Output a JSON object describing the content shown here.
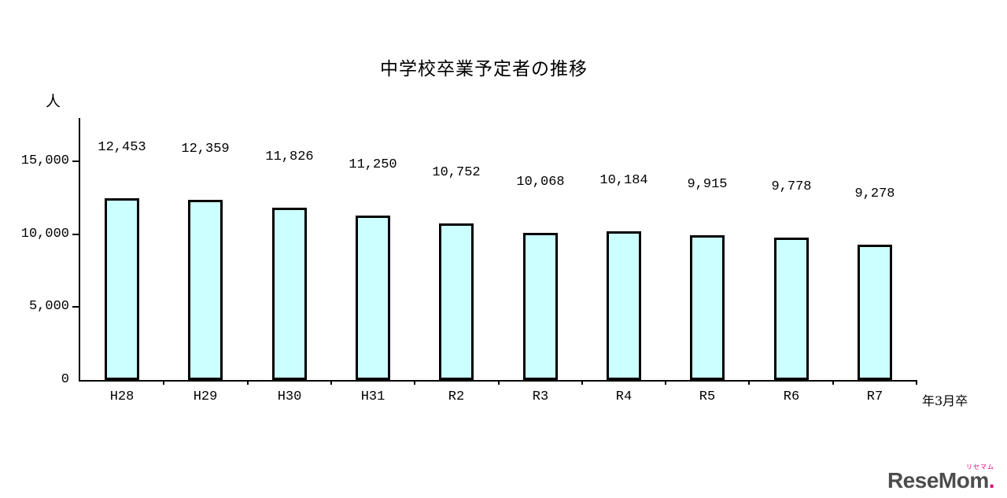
{
  "chart_data": {
    "type": "bar",
    "title": "中学校卒業予定者の推移",
    "y_unit": "人",
    "x_unit": "年3月卒",
    "categories": [
      "H28",
      "H29",
      "H30",
      "H31",
      "R2",
      "R3",
      "R4",
      "R5",
      "R6",
      "R7"
    ],
    "values": [
      12453,
      12359,
      11826,
      11250,
      10752,
      10068,
      10184,
      9915,
      9778,
      9278
    ],
    "value_labels": [
      "12,453",
      "12,359",
      "11,826",
      "11,250",
      "10,752",
      "10,068",
      "10,184",
      "9,915",
      "9,778",
      "9,278"
    ],
    "y_ticks": [
      {
        "value": 0,
        "label": "0"
      },
      {
        "value": 5000,
        "label": "5,000"
      },
      {
        "value": 10000,
        "label": "10,000"
      },
      {
        "value": 15000,
        "label": "15,000"
      }
    ],
    "ylim": [
      0,
      15000
    ],
    "grid": false,
    "legend": false,
    "bar_fill": "#ccffff",
    "bar_border": "#000000",
    "axis_color": "#000000"
  },
  "branding": {
    "logo_text": "ReseMom",
    "logo_dot": ".",
    "logo_small_text": "リセマム",
    "logo_color": "#4d4d4d",
    "logo_accent": "#e4007f"
  }
}
